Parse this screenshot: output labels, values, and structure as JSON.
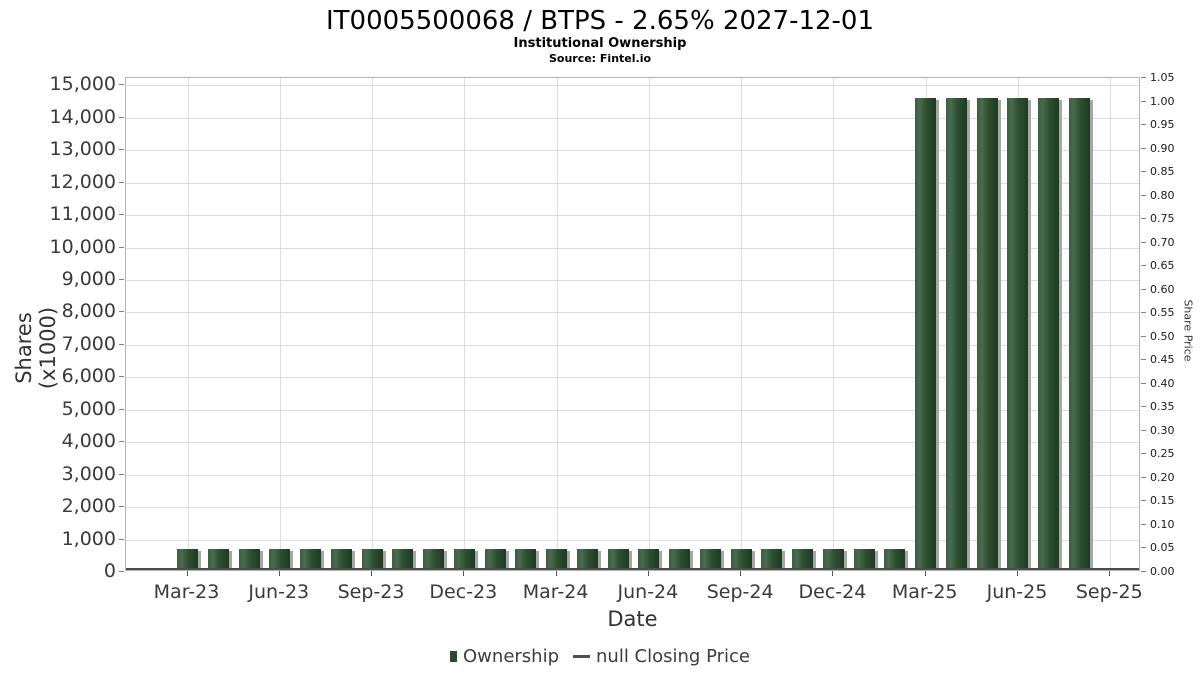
{
  "header": {
    "title": "IT0005500068 / BTPS - 2.65% 2027-12-01",
    "subtitle": "Institutional Ownership",
    "source": "Source: Fintel.io"
  },
  "chart_data": {
    "type": "bar",
    "title": "IT0005500068 / BTPS - 2.65% 2027-12-01",
    "subtitle": "Institutional Ownership",
    "source": "Source: Fintel.io",
    "categories": [
      "Mar-23",
      "Apr-23",
      "May-23",
      "Jun-23",
      "Jul-23",
      "Aug-23",
      "Sep-23",
      "Oct-23",
      "Nov-23",
      "Dec-23",
      "Jan-24",
      "Feb-24",
      "Mar-24",
      "Apr-24",
      "May-24",
      "Jun-24",
      "Jul-24",
      "Aug-24",
      "Sep-24",
      "Oct-24",
      "Nov-24",
      "Dec-24",
      "Jan-25",
      "Feb-25",
      "Mar-25",
      "Apr-25",
      "May-25",
      "Jun-25",
      "Jul-25",
      "Aug-25"
    ],
    "series": [
      {
        "name": "Ownership",
        "values": [
          650,
          650,
          650,
          650,
          650,
          650,
          650,
          650,
          650,
          650,
          650,
          650,
          650,
          650,
          650,
          650,
          650,
          650,
          650,
          650,
          650,
          650,
          650,
          650,
          14550,
          14550,
          14550,
          14550,
          14550,
          14550
        ],
        "color": "#2d5031"
      },
      {
        "name": "null Closing Price",
        "values": [],
        "color": "#4d4d4d"
      }
    ],
    "xlabel": "Date",
    "ylabel": "Shares (x1000)",
    "y2label": "Share Price",
    "ylim": [
      0,
      15000
    ],
    "y2lim": [
      0.0,
      1.05
    ],
    "grid": true,
    "legend_position": "bottom",
    "left_axis_ticks": [
      "0",
      "1,000",
      "2,000",
      "3,000",
      "4,000",
      "5,000",
      "6,000",
      "7,000",
      "8,000",
      "9,000",
      "10,000",
      "11,000",
      "12,000",
      "13,000",
      "14,000",
      "15,000"
    ],
    "right_axis_ticks": [
      "0.00",
      "0.05",
      "0.10",
      "0.15",
      "0.20",
      "0.25",
      "0.30",
      "0.35",
      "0.40",
      "0.45",
      "0.50",
      "0.55",
      "0.60",
      "0.65",
      "0.70",
      "0.75",
      "0.80",
      "0.85",
      "0.90",
      "0.95",
      "1.00",
      "1.05"
    ],
    "x_axis_ticks": [
      "Mar-23",
      "Jun-23",
      "Sep-23",
      "Dec-23",
      "Mar-24",
      "Jun-24",
      "Sep-24",
      "Dec-24",
      "Mar-25",
      "Jun-25",
      "Sep-25"
    ],
    "legend": [
      {
        "label": "Ownership",
        "swatch": "square",
        "color": "#2b4b2e"
      },
      {
        "label": "null Closing Price",
        "swatch": "line",
        "color": "#4d4d4d"
      }
    ]
  },
  "colors": {
    "bar_fill": "#2d5031",
    "bar_shadow": "#a6a6a6",
    "gridline": "#dcdcdc",
    "plot_border": "#b3b3b3",
    "axis_line": "#4d4d4d",
    "tick_text": "#3a3a3a"
  }
}
